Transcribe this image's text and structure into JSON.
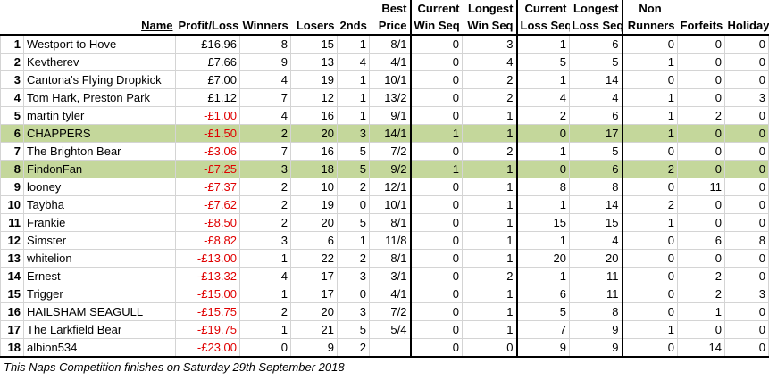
{
  "headers": {
    "name": "Name",
    "profit_loss": "Profit/Loss",
    "winners": "Winners",
    "losers": "Losers",
    "seconds": "2nds",
    "best_price": [
      "Best",
      "Price"
    ],
    "current_win_seq": [
      "Current",
      "Win Seq"
    ],
    "longest_win_seq": [
      "Longest",
      "Win Seq"
    ],
    "current_loss_seq": [
      "Current",
      "Loss Seq"
    ],
    "longest_loss_seq": [
      "Longest",
      "Loss Seq"
    ],
    "non_runners": [
      "Non",
      "Runners"
    ],
    "forfeits": "Forfeits",
    "holiday": "Holiday"
  },
  "rows": [
    {
      "rank": "1",
      "name": "Westport to Hove",
      "pl": "£16.96",
      "neg": false,
      "winners": "8",
      "losers": "15",
      "seconds": "1",
      "best": "8/1",
      "cws": "0",
      "lws": "3",
      "cls": "1",
      "lls": "6",
      "nr": "0",
      "ff": "0",
      "hol": "0",
      "hl": false
    },
    {
      "rank": "2",
      "name": "Kevtherev",
      "pl": "£7.66",
      "neg": false,
      "winners": "9",
      "losers": "13",
      "seconds": "4",
      "best": "4/1",
      "cws": "0",
      "lws": "4",
      "cls": "5",
      "lls": "5",
      "nr": "1",
      "ff": "0",
      "hol": "0",
      "hl": false
    },
    {
      "rank": "3",
      "name": "Cantona's Flying Dropkick",
      "pl": "£7.00",
      "neg": false,
      "winners": "4",
      "losers": "19",
      "seconds": "1",
      "best": "10/1",
      "cws": "0",
      "lws": "2",
      "cls": "1",
      "lls": "14",
      "nr": "0",
      "ff": "0",
      "hol": "0",
      "hl": false
    },
    {
      "rank": "4",
      "name": "Tom Hark, Preston Park",
      "pl": "£1.12",
      "neg": false,
      "winners": "7",
      "losers": "12",
      "seconds": "1",
      "best": "13/2",
      "cws": "0",
      "lws": "2",
      "cls": "4",
      "lls": "4",
      "nr": "1",
      "ff": "0",
      "hol": "3",
      "hl": false
    },
    {
      "rank": "5",
      "name": "martin tyler",
      "pl": "-£1.00",
      "neg": true,
      "winners": "4",
      "losers": "16",
      "seconds": "1",
      "best": "9/1",
      "cws": "0",
      "lws": "1",
      "cls": "2",
      "lls": "6",
      "nr": "1",
      "ff": "2",
      "hol": "0",
      "hl": false
    },
    {
      "rank": "6",
      "name": "CHAPPERS",
      "pl": "-£1.50",
      "neg": true,
      "winners": "2",
      "losers": "20",
      "seconds": "3",
      "best": "14/1",
      "cws": "1",
      "lws": "1",
      "cls": "0",
      "lls": "17",
      "nr": "1",
      "ff": "0",
      "hol": "0",
      "hl": true
    },
    {
      "rank": "7",
      "name": "The Brighton Bear",
      "pl": "-£3.06",
      "neg": true,
      "winners": "7",
      "losers": "16",
      "seconds": "5",
      "best": "7/2",
      "cws": "0",
      "lws": "2",
      "cls": "1",
      "lls": "5",
      "nr": "0",
      "ff": "0",
      "hol": "0",
      "hl": false
    },
    {
      "rank": "8",
      "name": "FindonFan",
      "pl": "-£7.25",
      "neg": true,
      "winners": "3",
      "losers": "18",
      "seconds": "5",
      "best": "9/2",
      "cws": "1",
      "lws": "1",
      "cls": "0",
      "lls": "6",
      "nr": "2",
      "ff": "0",
      "hol": "0",
      "hl": true
    },
    {
      "rank": "9",
      "name": "looney",
      "pl": "-£7.37",
      "neg": true,
      "winners": "2",
      "losers": "10",
      "seconds": "2",
      "best": "12/1",
      "cws": "0",
      "lws": "1",
      "cls": "8",
      "lls": "8",
      "nr": "0",
      "ff": "11",
      "hol": "0",
      "hl": false
    },
    {
      "rank": "10",
      "name": "Taybha",
      "pl": "-£7.62",
      "neg": true,
      "winners": "2",
      "losers": "19",
      "seconds": "0",
      "best": "10/1",
      "cws": "0",
      "lws": "1",
      "cls": "1",
      "lls": "14",
      "nr": "2",
      "ff": "0",
      "hol": "0",
      "hl": false
    },
    {
      "rank": "11",
      "name": "Frankie",
      "pl": "-£8.50",
      "neg": true,
      "winners": "2",
      "losers": "20",
      "seconds": "5",
      "best": "8/1",
      "cws": "0",
      "lws": "1",
      "cls": "15",
      "lls": "15",
      "nr": "1",
      "ff": "0",
      "hol": "0",
      "hl": false
    },
    {
      "rank": "12",
      "name": "Simster",
      "pl": "-£8.82",
      "neg": true,
      "winners": "3",
      "losers": "6",
      "seconds": "1",
      "best": "11/8",
      "cws": "0",
      "lws": "1",
      "cls": "1",
      "lls": "4",
      "nr": "0",
      "ff": "6",
      "hol": "8",
      "hl": false
    },
    {
      "rank": "13",
      "name": "whitelion",
      "pl": "-£13.00",
      "neg": true,
      "winners": "1",
      "losers": "22",
      "seconds": "2",
      "best": "8/1",
      "cws": "0",
      "lws": "1",
      "cls": "20",
      "lls": "20",
      "nr": "0",
      "ff": "0",
      "hol": "0",
      "hl": false
    },
    {
      "rank": "14",
      "name": "Ernest",
      "pl": "-£13.32",
      "neg": true,
      "winners": "4",
      "losers": "17",
      "seconds": "3",
      "best": "3/1",
      "cws": "0",
      "lws": "2",
      "cls": "1",
      "lls": "11",
      "nr": "0",
      "ff": "2",
      "hol": "0",
      "hl": false
    },
    {
      "rank": "15",
      "name": "Trigger",
      "pl": "-£15.00",
      "neg": true,
      "winners": "1",
      "losers": "17",
      "seconds": "0",
      "best": "4/1",
      "cws": "0",
      "lws": "1",
      "cls": "6",
      "lls": "11",
      "nr": "0",
      "ff": "2",
      "hol": "3",
      "hl": false
    },
    {
      "rank": "16",
      "name": "HAILSHAM SEAGULL",
      "pl": "-£15.75",
      "neg": true,
      "winners": "2",
      "losers": "20",
      "seconds": "3",
      "best": "7/2",
      "cws": "0",
      "lws": "1",
      "cls": "5",
      "lls": "8",
      "nr": "0",
      "ff": "1",
      "hol": "0",
      "hl": false
    },
    {
      "rank": "17",
      "name": "The Larkfield Bear",
      "pl": "-£19.75",
      "neg": true,
      "winners": "1",
      "losers": "21",
      "seconds": "5",
      "best": "5/4",
      "cws": "0",
      "lws": "1",
      "cls": "7",
      "lls": "9",
      "nr": "1",
      "ff": "0",
      "hol": "0",
      "hl": false
    },
    {
      "rank": "18",
      "name": "albion534",
      "pl": "-£23.00",
      "neg": true,
      "winners": "0",
      "losers": "9",
      "seconds": "2",
      "best": "",
      "cws": "0",
      "lws": "0",
      "cls": "9",
      "lls": "9",
      "nr": "0",
      "ff": "14",
      "hol": "0",
      "hl": false
    }
  ],
  "footer_note": "This Naps Competition finishes on Saturday 29th September 2018",
  "colors": {
    "highlight": "#c4d79b",
    "negative": "#e00000"
  }
}
